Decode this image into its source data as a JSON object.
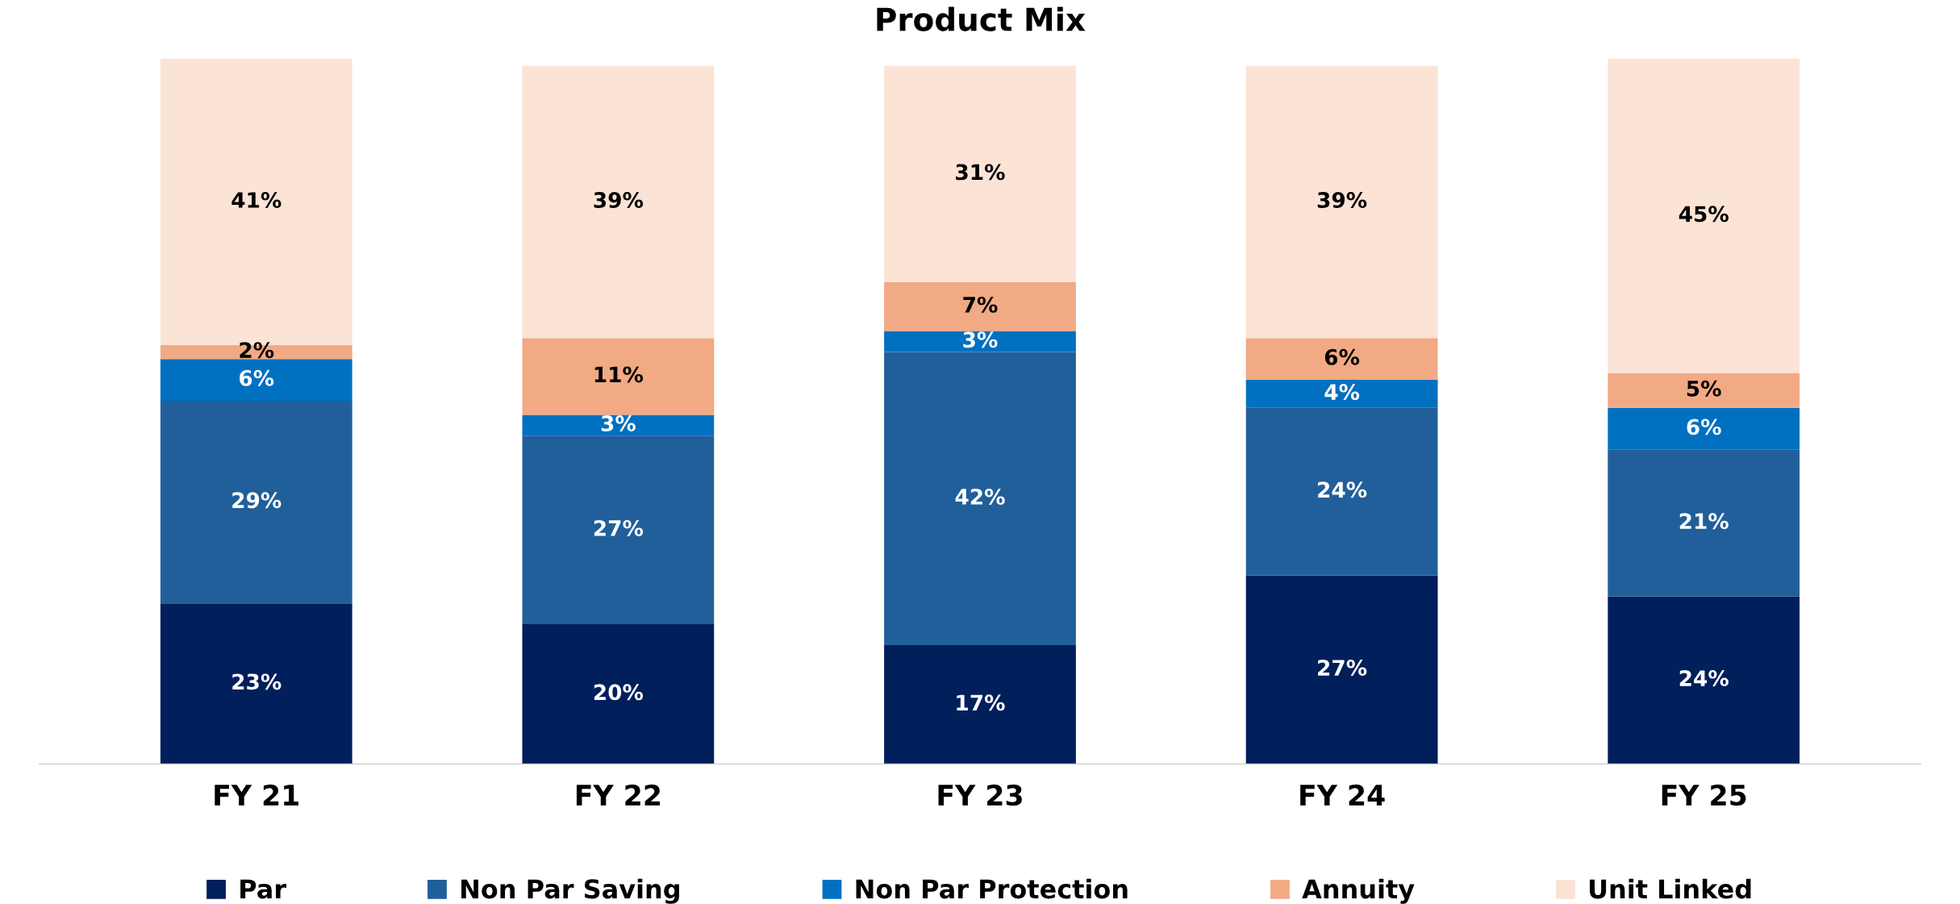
{
  "chart_data": {
    "type": "bar",
    "title": "Product Mix",
    "stacked": true,
    "legend": "bottom",
    "grid": false,
    "categories": [
      "FY 21",
      "FY 22",
      "FY 23",
      "FY 24",
      "FY 25"
    ],
    "series": [
      {
        "name": "Par",
        "color": "#001f5b",
        "values": [
          23,
          20,
          17,
          27,
          24
        ],
        "value_labels": [
          "23%",
          "20%",
          "17%",
          "27%",
          "24%"
        ]
      },
      {
        "name": "Non Par Saving",
        "color": "#215f9a",
        "values": [
          29,
          27,
          42,
          24,
          21
        ],
        "value_labels": [
          "29%",
          "27%",
          "42%",
          "24%",
          "21%"
        ]
      },
      {
        "name": "Non Par Protection",
        "color": "#0070c0",
        "values": [
          6,
          3,
          3,
          4,
          6
        ],
        "value_labels": [
          "6%",
          "3%",
          "3%",
          "4%",
          "6%"
        ]
      },
      {
        "name": "Annuity",
        "color": "#f1aa84",
        "values": [
          2,
          11,
          7,
          6,
          5
        ],
        "value_labels": [
          "2%",
          "11%",
          "7%",
          "6%",
          "5%"
        ]
      },
      {
        "name": "Unit Linked",
        "color": "#fbe3d6",
        "values": [
          41,
          39,
          31,
          39,
          45
        ],
        "value_labels": [
          "41%",
          "39%",
          "31%",
          "39%",
          "45%"
        ]
      }
    ]
  }
}
